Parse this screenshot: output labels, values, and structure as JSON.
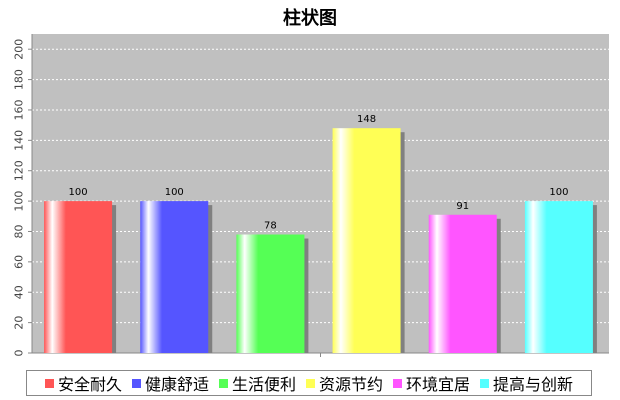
{
  "chart_data": {
    "type": "bar",
    "title": "柱状图",
    "categories": [
      "安全耐久",
      "健康舒适",
      "生活便利",
      "资源节约",
      "环境宜居",
      "提高与创新"
    ],
    "values": [
      100,
      100,
      78,
      148,
      91,
      100
    ],
    "colors": [
      "#ff5555",
      "#5555ff",
      "#55ff55",
      "#ffff55",
      "#ff55ff",
      "#55ffff"
    ],
    "ylim": [
      0,
      210
    ],
    "yticks": [
      0,
      20,
      40,
      60,
      80,
      100,
      120,
      140,
      160,
      180,
      200
    ],
    "background": "#c0c0c0",
    "grid": true,
    "legend": "bottom"
  }
}
